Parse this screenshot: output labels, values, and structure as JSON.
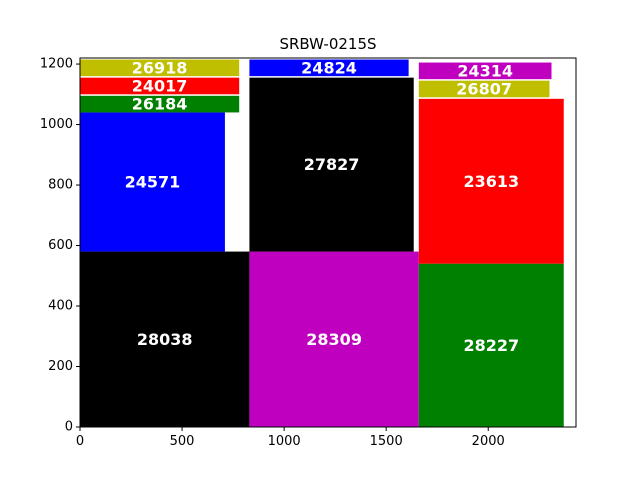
{
  "chart_data": {
    "type": "treemap",
    "title": "SRBW-0215S",
    "xlim": [
      0,
      2430
    ],
    "ylim": [
      0,
      1220
    ],
    "xticks": [
      0,
      500,
      1000,
      1500,
      2000
    ],
    "yticks": [
      0,
      200,
      400,
      600,
      800,
      1000,
      1200
    ],
    "rects": [
      {
        "label": "28038",
        "x0": 0,
        "x1": 830,
        "y0": 0,
        "y1": 580,
        "color": "#000000"
      },
      {
        "label": "28309",
        "x0": 830,
        "x1": 1660,
        "y0": 0,
        "y1": 580,
        "color": "#bf00bf"
      },
      {
        "label": "28227",
        "x0": 1660,
        "x1": 2370,
        "y0": 0,
        "y1": 540,
        "color": "#008000"
      },
      {
        "label": "24571",
        "x0": 0,
        "x1": 710,
        "y0": 580,
        "y1": 1040,
        "color": "#0000ff"
      },
      {
        "label": "26184",
        "x0": 0,
        "x1": 780,
        "y0": 1040,
        "y1": 1095,
        "color": "#008000"
      },
      {
        "label": "24017",
        "x0": 0,
        "x1": 780,
        "y0": 1100,
        "y1": 1155,
        "color": "#ff0000"
      },
      {
        "label": "26918",
        "x0": 0,
        "x1": 780,
        "y0": 1160,
        "y1": 1215,
        "color": "#bfbf00"
      },
      {
        "label": "27827",
        "x0": 830,
        "x1": 1635,
        "y0": 580,
        "y1": 1155,
        "color": "#000000"
      },
      {
        "label": "24824",
        "x0": 830,
        "x1": 1610,
        "y0": 1160,
        "y1": 1215,
        "color": "#0000ff"
      },
      {
        "label": "23613",
        "x0": 1660,
        "x1": 2370,
        "y0": 540,
        "y1": 1085,
        "color": "#ff0000"
      },
      {
        "label": "26807",
        "x0": 1660,
        "x1": 2300,
        "y0": 1090,
        "y1": 1145,
        "color": "#bfbf00"
      },
      {
        "label": "24314",
        "x0": 1660,
        "x1": 2310,
        "y0": 1150,
        "y1": 1205,
        "color": "#bf00bf"
      }
    ]
  }
}
